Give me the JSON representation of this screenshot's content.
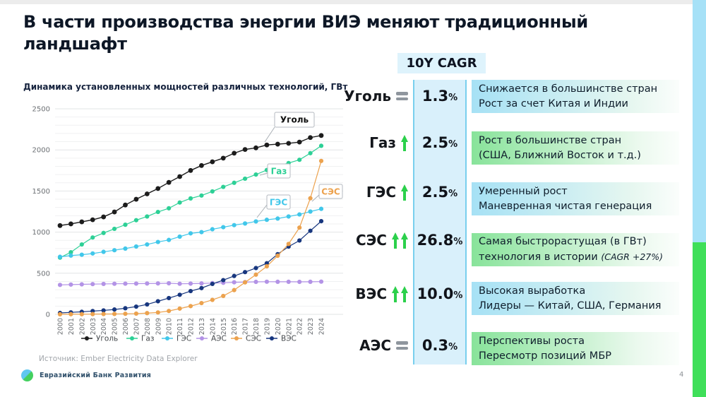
{
  "slide": {
    "title_lines": [
      "В части производства энергии ВИЭ меняют традиционный",
      "ландшафт"
    ],
    "source": "Источник: Ember Electricity Data Explorer",
    "footer_brand": "Евразийский Банк Развития",
    "page_number": "4"
  },
  "colors": {
    "edge_bar_blue": "#a6e1f7",
    "edge_bar_green": "#3fdf59",
    "arrow_green": "#2bd04b",
    "equals_gray": "#8f969e",
    "band_fill": "#d9f0fb",
    "band_border": "#79cfee"
  },
  "cagr_panel": {
    "header": "10Y CAGR",
    "rows": [
      {
        "label": "Уголь",
        "trend": "flat",
        "value": "1.3",
        "unit": "%",
        "box_color": "blue",
        "desc1": "Снижается в большинстве стран",
        "desc2": "Рост за счет Китая и Индии"
      },
      {
        "label": "Газ",
        "trend": "up",
        "value": "2.5",
        "unit": "%",
        "box_color": "green",
        "desc1": "Рост в большинстве стран",
        "desc2": "(США, Ближний Восток и т.д.)"
      },
      {
        "label": "ГЭС",
        "trend": "up",
        "value": "2.5",
        "unit": "%",
        "box_color": "blue",
        "desc1": "Умеренный рост",
        "desc2": "Маневренная чистая генерация"
      },
      {
        "label": "СЭС",
        "trend": "up-strong",
        "value": "26.8",
        "unit": "%",
        "box_color": "green",
        "desc1": "Самая быстрорастущая (в ГВт)",
        "desc2": "технология в истории ",
        "desc2_note": "(CAGR +27%)"
      },
      {
        "label": "ВЭС",
        "trend": "up-strong",
        "value": "10.0",
        "unit": "%",
        "box_color": "blue",
        "desc1": "Высокая выработка",
        "desc2": "Лидеры — Китай, США, Германия"
      },
      {
        "label": "АЭС",
        "trend": "flat",
        "value": "0.3",
        "unit": "%",
        "box_color": "green",
        "desc1": "Перспективы роста",
        "desc2": "Пересмотр позиций МБР"
      }
    ]
  },
  "chart_data": {
    "type": "line",
    "title": "Динамика установленных мощностей различных технологий, ГВт",
    "x": [
      2000,
      2001,
      2002,
      2003,
      2004,
      2005,
      2006,
      2007,
      2008,
      2009,
      2010,
      2011,
      2012,
      2013,
      2014,
      2015,
      2016,
      2017,
      2018,
      2019,
      2020,
      2021,
      2022,
      2023,
      2024
    ],
    "ylim": [
      0,
      2500
    ],
    "ytick_step": 500,
    "grid": true,
    "legend_position": "bottom",
    "series": [
      {
        "name": "Уголь",
        "color": "#1c1c1c",
        "values": [
          1080,
          1100,
          1125,
          1150,
          1185,
          1245,
          1330,
          1400,
          1465,
          1530,
          1605,
          1675,
          1750,
          1810,
          1855,
          1900,
          1960,
          2005,
          2025,
          2060,
          2070,
          2080,
          2095,
          2150,
          2175
        ]
      },
      {
        "name": "Газ",
        "color": "#2dd096",
        "values": [
          690,
          755,
          850,
          935,
          990,
          1040,
          1090,
          1145,
          1190,
          1245,
          1290,
          1360,
          1410,
          1445,
          1495,
          1550,
          1600,
          1650,
          1700,
          1755,
          1805,
          1840,
          1880,
          1960,
          2050
        ]
      },
      {
        "name": "ГЭС",
        "color": "#41c7ea",
        "values": [
          700,
          715,
          725,
          740,
          760,
          780,
          800,
          825,
          850,
          880,
          905,
          945,
          985,
          1000,
          1035,
          1060,
          1085,
          1105,
          1130,
          1150,
          1165,
          1190,
          1215,
          1250,
          1283
        ]
      },
      {
        "name": "АЭС",
        "color": "#b393e6",
        "values": [
          358,
          362,
          365,
          368,
          370,
          372,
          373,
          374,
          375,
          376,
          378,
          372,
          374,
          376,
          380,
          384,
          390,
          392,
          395,
          397,
          396,
          396,
          395,
          396,
          398
        ]
      },
      {
        "name": "СЭС",
        "color": "#eca24e",
        "values": [
          1,
          2,
          2,
          3,
          4,
          5,
          7,
          9,
          15,
          23,
          41,
          70,
          100,
          137,
          176,
          224,
          295,
          389,
          483,
          584,
          713,
          856,
          1055,
          1412,
          1866
        ]
      },
      {
        "name": "ВЭС",
        "color": "#17367e",
        "values": [
          17,
          24,
          31,
          40,
          48,
          59,
          74,
          94,
          121,
          159,
          198,
          238,
          283,
          319,
          370,
          416,
          467,
          514,
          563,
          622,
          732,
          824,
          898,
          1016,
          1133
        ]
      }
    ],
    "annotations": [
      "Уголь",
      "Газ",
      "ГЭС",
      "СЭС"
    ]
  }
}
